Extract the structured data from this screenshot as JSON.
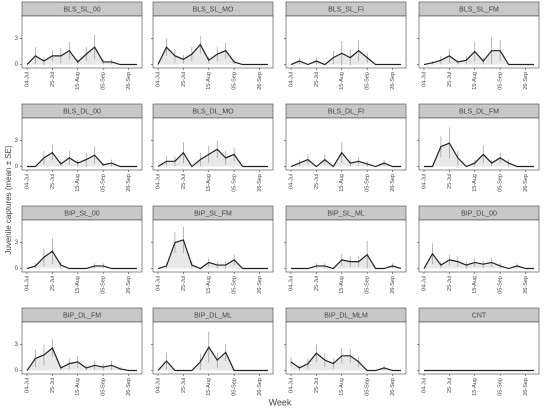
{
  "ylabel": "Juvenile captures (mean ± SE)",
  "xlabel": "Week",
  "chart_data": [
    {
      "type": "line",
      "title": "BLS_SL_00",
      "categories": [
        "04-Jul",
        null,
        null,
        "25-Jul",
        null,
        null,
        "15-Aug",
        null,
        null,
        "05-Sep",
        null,
        null,
        "26-Sep",
        null
      ],
      "values": [
        0,
        1,
        0.4,
        1,
        1,
        1.6,
        0.3,
        1.2,
        2,
        0.3,
        0.3,
        0,
        0,
        0
      ],
      "errors": [
        0,
        1,
        0.5,
        0.6,
        0.9,
        1,
        0.3,
        0.8,
        1.4,
        0.3,
        0.3,
        0,
        0,
        0
      ],
      "color": "#222222",
      "fill": "#e8e8e8",
      "ylim": [
        -0.4,
        5.6
      ],
      "yticks": [
        0,
        3
      ]
    },
    {
      "type": "line",
      "title": "BLS_SL_MO",
      "categories": [
        "04-Jul",
        null,
        null,
        "25-Jul",
        null,
        null,
        "15-Aug",
        null,
        null,
        "05-Sep",
        null,
        null,
        "26-Sep",
        null
      ],
      "values": [
        0,
        2,
        1,
        0.6,
        1.2,
        2.3,
        0.5,
        1.2,
        1.6,
        0.3,
        0,
        0,
        0,
        0
      ],
      "errors": [
        0,
        1,
        0.8,
        0.5,
        0.8,
        1,
        0.4,
        0.8,
        0.9,
        0.3,
        0,
        0,
        0,
        0
      ],
      "color": "#222222",
      "fill": "#e8e8e8",
      "ylim": [
        -0.4,
        5.6
      ],
      "yticks": [
        0,
        3
      ]
    },
    {
      "type": "line",
      "title": "BLS_SL_FI",
      "categories": [
        "04-Jul",
        null,
        null,
        "25-Jul",
        null,
        null,
        "15-Aug",
        null,
        null,
        "05-Sep",
        null,
        null,
        "26-Sep",
        null
      ],
      "values": [
        0,
        0.4,
        0,
        0.4,
        0,
        0.8,
        1.3,
        0.8,
        1.6,
        0.8,
        0,
        0,
        0,
        0
      ],
      "errors": [
        0,
        0.4,
        0,
        0.4,
        0,
        0.8,
        1.4,
        0.9,
        1.2,
        0.6,
        0,
        0,
        0,
        0
      ],
      "color": "#222222",
      "fill": "#e8e8e8",
      "ylim": [
        -0.4,
        5.6
      ],
      "yticks": [
        0,
        3
      ]
    },
    {
      "type": "line",
      "title": "BLS_SL_FM",
      "categories": [
        "04-Jul",
        null,
        null,
        "25-Jul",
        null,
        null,
        "15-Aug",
        null,
        null,
        "05-Sep",
        null,
        null,
        "26-Sep",
        null
      ],
      "values": [
        0,
        0.2,
        0.5,
        1,
        0.3,
        0.5,
        1.5,
        0.4,
        1.6,
        1.6,
        0,
        0,
        0,
        0
      ],
      "errors": [
        0,
        0.2,
        0.5,
        0.8,
        0.3,
        0.5,
        1.1,
        0.4,
        1.6,
        1.2,
        0,
        0,
        0,
        0
      ],
      "color": "#222222",
      "fill": "#e8e8e8",
      "ylim": [
        -0.4,
        5.6
      ],
      "yticks": [
        0,
        3
      ]
    },
    {
      "type": "line",
      "title": "BLS_DL_00",
      "categories": [
        "04-Jul",
        null,
        null,
        "25-Jul",
        null,
        null,
        "15-Aug",
        null,
        null,
        "05-Sep",
        null,
        null,
        "26-Sep",
        null
      ],
      "values": [
        0,
        0,
        1,
        1.6,
        0.3,
        1,
        0.4,
        0.8,
        1.3,
        0.2,
        0.4,
        0,
        0,
        0
      ],
      "errors": [
        0,
        0,
        0.8,
        0.9,
        0.3,
        0.8,
        0.4,
        0.8,
        1,
        0.2,
        0.4,
        0,
        0,
        0
      ],
      "color": "#222222",
      "fill": "#e8e8e8",
      "ylim": [
        -0.4,
        5.6
      ],
      "yticks": [
        0,
        3
      ]
    },
    {
      "type": "line",
      "title": "BLS_DL_MO",
      "categories": [
        "04-Jul",
        null,
        null,
        "25-Jul",
        null,
        null,
        "15-Aug",
        null,
        null,
        "05-Sep",
        null,
        null,
        "26-Sep",
        null
      ],
      "values": [
        0,
        0.6,
        0.6,
        1.6,
        0,
        0.8,
        1.4,
        2,
        1,
        1.4,
        0,
        0,
        0,
        0
      ],
      "errors": [
        0,
        0.6,
        0.6,
        1.2,
        0,
        0.8,
        1,
        1,
        0.8,
        0.8,
        0,
        0,
        0,
        0
      ],
      "color": "#222222",
      "fill": "#e8e8e8",
      "ylim": [
        -0.4,
        5.6
      ],
      "yticks": [
        0,
        3
      ]
    },
    {
      "type": "line",
      "title": "BLS_DL_FI",
      "categories": [
        "04-Jul",
        null,
        null,
        "25-Jul",
        null,
        null,
        "15-Aug",
        null,
        null,
        "05-Sep",
        null,
        null,
        "26-Sep",
        null
      ],
      "values": [
        0,
        0.4,
        0.8,
        0,
        0.8,
        0,
        1.6,
        0.4,
        0.6,
        0.3,
        0,
        0.4,
        0,
        0
      ],
      "errors": [
        0,
        0.4,
        0.6,
        0,
        0.6,
        0,
        1.2,
        0.4,
        0.5,
        0.3,
        0,
        0.4,
        0,
        0
      ],
      "color": "#222222",
      "fill": "#e8e8e8",
      "ylim": [
        -0.4,
        5.6
      ],
      "yticks": [
        0,
        3
      ]
    },
    {
      "type": "line",
      "title": "BLS_DL_FM",
      "categories": [
        "04-Jul",
        null,
        null,
        "25-Jul",
        null,
        null,
        "15-Aug",
        null,
        null,
        "05-Sep",
        null,
        null,
        "26-Sep",
        null
      ],
      "values": [
        0,
        0,
        2.3,
        2.7,
        1,
        0,
        0.4,
        1.4,
        0.4,
        1,
        0.4,
        0,
        0,
        0
      ],
      "errors": [
        0,
        0,
        1.2,
        1.8,
        0.8,
        0,
        0.4,
        1,
        0.4,
        0.6,
        0.4,
        0,
        0,
        0
      ],
      "color": "#222222",
      "fill": "#e8e8e8",
      "ylim": [
        -0.4,
        5.6
      ],
      "yticks": [
        0,
        3
      ]
    },
    {
      "type": "line",
      "title": "BIP_SL_00",
      "categories": [
        "04-Jul",
        null,
        null,
        "25-Jul",
        null,
        null,
        "15-Aug",
        null,
        null,
        "05-Sep",
        null,
        null,
        "26-Sep",
        null
      ],
      "values": [
        0,
        0.3,
        1.3,
        2,
        0.4,
        0,
        0,
        0,
        0.3,
        0.3,
        0,
        0,
        0,
        0
      ],
      "errors": [
        0,
        0.3,
        1,
        1.5,
        0.4,
        0,
        0,
        0,
        0.3,
        0.3,
        0,
        0,
        0,
        0
      ],
      "color": "#222222",
      "fill": "#e8e8e8",
      "ylim": [
        -0.4,
        5.6
      ],
      "yticks": [
        0,
        3
      ]
    },
    {
      "type": "line",
      "title": "BIP_SL_FM",
      "categories": [
        "04-Jul",
        null,
        null,
        "25-Jul",
        null,
        null,
        "15-Aug",
        null,
        null,
        "05-Sep",
        null,
        null,
        "26-Sep",
        null
      ],
      "values": [
        0,
        0.3,
        3,
        3.3,
        0.4,
        0,
        0.7,
        0.4,
        0.4,
        1,
        0,
        0,
        0,
        0
      ],
      "errors": [
        0,
        0.3,
        1.2,
        1.5,
        0.4,
        0,
        0.5,
        0.4,
        0.4,
        0.6,
        0,
        0,
        0,
        0
      ],
      "color": "#222222",
      "fill": "#e8e8e8",
      "ylim": [
        -0.4,
        5.6
      ],
      "yticks": [
        0,
        3
      ]
    },
    {
      "type": "line",
      "title": "BIP_SL_ML",
      "categories": [
        "04-Jul",
        null,
        null,
        "25-Jul",
        null,
        null,
        "15-Aug",
        null,
        null,
        "05-Sep",
        null,
        null,
        "26-Sep",
        null
      ],
      "values": [
        0,
        0,
        0,
        0.3,
        0.3,
        0,
        1,
        0.8,
        0.8,
        1.6,
        0,
        0,
        0.3,
        0
      ],
      "errors": [
        0,
        0,
        0,
        0.3,
        0.3,
        0,
        0.7,
        0.6,
        0.6,
        1.6,
        0,
        0,
        0.3,
        0
      ],
      "color": "#222222",
      "fill": "#e8e8e8",
      "ylim": [
        -0.4,
        5.6
      ],
      "yticks": [
        0,
        3
      ]
    },
    {
      "type": "line",
      "title": "BIP_DL_00",
      "categories": [
        "04-Jul",
        null,
        null,
        "25-Jul",
        null,
        null,
        "15-Aug",
        null,
        null,
        "05-Sep",
        null,
        null,
        "26-Sep",
        null
      ],
      "values": [
        0,
        1.7,
        0.4,
        1,
        0.8,
        0.4,
        0.7,
        0.5,
        0.7,
        0.3,
        0,
        0.3,
        0,
        0
      ],
      "errors": [
        0,
        1.2,
        0.4,
        0.6,
        0.6,
        0.4,
        0.5,
        0.4,
        0.5,
        0.3,
        0,
        0.3,
        0,
        0
      ],
      "color": "#222222",
      "fill": "#e8e8e8",
      "ylim": [
        -0.4,
        5.6
      ],
      "yticks": [
        0,
        3
      ]
    },
    {
      "type": "line",
      "title": "BIP_DL_FM",
      "categories": [
        "04-Jul",
        null,
        null,
        "25-Jul",
        null,
        null,
        "15-Aug",
        null,
        null,
        "05-Sep",
        null,
        null,
        "26-Sep",
        null
      ],
      "values": [
        0,
        1.4,
        1.8,
        2.6,
        0.3,
        0.8,
        1,
        0.3,
        0.6,
        0.4,
        0.6,
        0.2,
        0,
        0
      ],
      "errors": [
        0,
        1,
        1.2,
        1,
        0.3,
        0.6,
        0.7,
        0.3,
        0.5,
        0.4,
        0.5,
        0.2,
        0,
        0
      ],
      "color": "#222222",
      "fill": "#e8e8e8",
      "ylim": [
        -0.4,
        5.6
      ],
      "yticks": [
        0,
        3
      ]
    },
    {
      "type": "line",
      "title": "BIP_DL_ML",
      "categories": [
        "04-Jul",
        null,
        null,
        "25-Jul",
        null,
        null,
        "15-Aug",
        null,
        null,
        "05-Sep",
        null,
        null,
        "26-Sep",
        null
      ],
      "values": [
        0,
        1.1,
        0,
        0,
        0,
        1,
        2.7,
        1.2,
        2.1,
        0,
        0,
        0,
        0,
        0
      ],
      "errors": [
        0,
        1,
        0,
        0,
        0,
        0.9,
        1.8,
        0.9,
        1,
        0,
        0,
        0,
        0,
        0
      ],
      "color": "#222222",
      "fill": "#e8e8e8",
      "ylim": [
        -0.4,
        5.6
      ],
      "yticks": [
        0,
        3
      ]
    },
    {
      "type": "line",
      "title": "BIP_DL_MLM",
      "categories": [
        "04-Jul",
        null,
        null,
        "25-Jul",
        null,
        null,
        "15-Aug",
        null,
        null,
        "05-Sep",
        null,
        null,
        "26-Sep",
        null
      ],
      "values": [
        1,
        0.3,
        0.8,
        2,
        1.2,
        0.8,
        1.7,
        1.7,
        1,
        0,
        0,
        0.3,
        0,
        0
      ],
      "errors": [
        0.6,
        0.3,
        0.6,
        1,
        0.8,
        0.6,
        0.9,
        0.8,
        0.6,
        0,
        0,
        0.3,
        0,
        0
      ],
      "color": "#222222",
      "fill": "#e8e8e8",
      "ylim": [
        -0.4,
        5.6
      ],
      "yticks": [
        0,
        3
      ]
    },
    {
      "type": "line",
      "title": "CNT",
      "categories": [
        "04-Jul",
        null,
        null,
        "25-Jul",
        null,
        null,
        "15-Aug",
        null,
        null,
        "05-Sep",
        null,
        null,
        "26-Sep",
        null
      ],
      "values": [
        0,
        0,
        0,
        0,
        0,
        0,
        0,
        0,
        0,
        0,
        0,
        0,
        0,
        0
      ],
      "errors": [
        0,
        0,
        0,
        0,
        0,
        0,
        0,
        0,
        0,
        0,
        0,
        0,
        0,
        0
      ],
      "color": "#222222",
      "fill": "#e8e8e8",
      "ylim": [
        -0.4,
        5.6
      ],
      "yticks": [
        0,
        3
      ]
    }
  ]
}
